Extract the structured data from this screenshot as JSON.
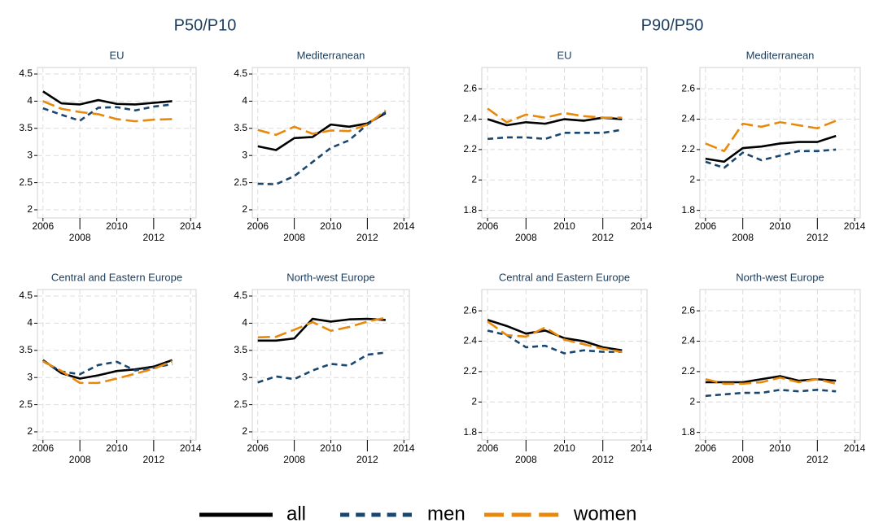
{
  "headings": [
    "P50/P10",
    "P90/P50"
  ],
  "chart_data": [
    {
      "type": "line",
      "title": "EU",
      "x": [
        2006,
        2007,
        2008,
        2009,
        2010,
        2011,
        2012,
        2013
      ],
      "xlim": [
        2005.7,
        2014.3
      ],
      "xticks": [
        2006,
        2008,
        2010,
        2012,
        2014
      ],
      "ylim": [
        1.85,
        4.62
      ],
      "yticks": [
        2,
        2.5,
        3,
        3.5,
        4,
        4.5
      ],
      "grid": true,
      "series": [
        {
          "name": "all",
          "color": "#000000",
          "dash": "none",
          "values": [
            4.18,
            3.96,
            3.94,
            4.02,
            3.95,
            3.94,
            3.97,
            4.0
          ]
        },
        {
          "name": "men",
          "color": "#1a476f",
          "dash": "7 5",
          "values": [
            3.87,
            3.75,
            3.64,
            3.88,
            3.89,
            3.83,
            3.9,
            3.94
          ]
        },
        {
          "name": "women",
          "color": "#e8890c",
          "dash": "15 6",
          "values": [
            4.0,
            3.86,
            3.8,
            3.76,
            3.67,
            3.63,
            3.66,
            3.67
          ]
        }
      ]
    },
    {
      "type": "line",
      "title": "Mediterranean",
      "x": [
        2006,
        2007,
        2008,
        2009,
        2010,
        2011,
        2012,
        2013
      ],
      "xlim": [
        2005.7,
        2014.3
      ],
      "xticks": [
        2006,
        2008,
        2010,
        2012,
        2014
      ],
      "ylim": [
        1.85,
        4.62
      ],
      "yticks": [
        2,
        2.5,
        3,
        3.5,
        4,
        4.5
      ],
      "grid": true,
      "series": [
        {
          "name": "all",
          "color": "#000000",
          "dash": "none",
          "values": [
            3.17,
            3.1,
            3.32,
            3.34,
            3.57,
            3.53,
            3.59,
            3.78
          ]
        },
        {
          "name": "men",
          "color": "#1a476f",
          "dash": "7 5",
          "values": [
            2.48,
            2.47,
            2.62,
            2.88,
            3.14,
            3.28,
            3.57,
            3.8
          ]
        },
        {
          "name": "women",
          "color": "#e8890c",
          "dash": "15 6",
          "values": [
            3.47,
            3.38,
            3.53,
            3.4,
            3.46,
            3.45,
            3.57,
            3.83
          ]
        }
      ]
    },
    {
      "type": "line",
      "title": "EU",
      "x": [
        2006,
        2007,
        2008,
        2009,
        2010,
        2011,
        2012,
        2013
      ],
      "xlim": [
        2005.7,
        2014.3
      ],
      "xticks": [
        2006,
        2008,
        2010,
        2012,
        2014
      ],
      "ylim": [
        1.75,
        2.74
      ],
      "yticks": [
        1.8,
        2,
        2.2,
        2.4,
        2.6
      ],
      "grid": true,
      "series": [
        {
          "name": "all",
          "color": "#000000",
          "dash": "none",
          "values": [
            2.4,
            2.36,
            2.38,
            2.37,
            2.4,
            2.39,
            2.41,
            2.4
          ]
        },
        {
          "name": "men",
          "color": "#1a476f",
          "dash": "7 5",
          "values": [
            2.27,
            2.28,
            2.28,
            2.27,
            2.31,
            2.31,
            2.31,
            2.33
          ]
        },
        {
          "name": "women",
          "color": "#e8890c",
          "dash": "15 6",
          "values": [
            2.47,
            2.38,
            2.43,
            2.41,
            2.44,
            2.42,
            2.41,
            2.41
          ]
        }
      ]
    },
    {
      "type": "line",
      "title": "Mediterranean",
      "x": [
        2006,
        2007,
        2008,
        2009,
        2010,
        2011,
        2012,
        2013
      ],
      "xlim": [
        2005.7,
        2014.3
      ],
      "xticks": [
        2006,
        2008,
        2010,
        2012,
        2014
      ],
      "ylim": [
        1.75,
        2.74
      ],
      "yticks": [
        1.8,
        2,
        2.2,
        2.4,
        2.6
      ],
      "grid": true,
      "series": [
        {
          "name": "all",
          "color": "#000000",
          "dash": "none",
          "values": [
            2.14,
            2.12,
            2.21,
            2.22,
            2.24,
            2.25,
            2.25,
            2.29
          ]
        },
        {
          "name": "men",
          "color": "#1a476f",
          "dash": "7 5",
          "values": [
            2.12,
            2.08,
            2.18,
            2.13,
            2.16,
            2.19,
            2.19,
            2.2
          ]
        },
        {
          "name": "women",
          "color": "#e8890c",
          "dash": "15 6",
          "values": [
            2.24,
            2.19,
            2.37,
            2.35,
            2.38,
            2.36,
            2.34,
            2.39
          ]
        }
      ]
    },
    {
      "type": "line",
      "title": "Central and Eastern Europe",
      "x": [
        2006,
        2007,
        2008,
        2009,
        2010,
        2011,
        2012,
        2013
      ],
      "xlim": [
        2005.7,
        2014.3
      ],
      "xticks": [
        2006,
        2008,
        2010,
        2012,
        2014
      ],
      "ylim": [
        1.85,
        4.62
      ],
      "yticks": [
        2,
        2.5,
        3,
        3.5,
        4,
        4.5
      ],
      "grid": true,
      "series": [
        {
          "name": "all",
          "color": "#000000",
          "dash": "none",
          "values": [
            3.32,
            3.08,
            2.98,
            3.04,
            3.12,
            3.15,
            3.2,
            3.32
          ]
        },
        {
          "name": "men",
          "color": "#1a476f",
          "dash": "7 5",
          "values": [
            3.3,
            3.11,
            3.06,
            3.23,
            3.29,
            3.13,
            3.18,
            3.25
          ]
        },
        {
          "name": "women",
          "color": "#e8890c",
          "dash": "15 6",
          "values": [
            3.3,
            3.12,
            2.9,
            2.9,
            2.98,
            3.07,
            3.16,
            3.3
          ]
        }
      ]
    },
    {
      "type": "line",
      "title": "North-west Europe",
      "x": [
        2006,
        2007,
        2008,
        2009,
        2010,
        2011,
        2012,
        2013
      ],
      "xlim": [
        2005.7,
        2014.3
      ],
      "xticks": [
        2006,
        2008,
        2010,
        2012,
        2014
      ],
      "ylim": [
        1.85,
        4.62
      ],
      "yticks": [
        2,
        2.5,
        3,
        3.5,
        4,
        4.5
      ],
      "grid": true,
      "series": [
        {
          "name": "all",
          "color": "#000000",
          "dash": "none",
          "values": [
            3.68,
            3.68,
            3.72,
            4.08,
            4.03,
            4.07,
            4.08,
            4.06
          ]
        },
        {
          "name": "men",
          "color": "#1a476f",
          "dash": "7 5",
          "values": [
            2.91,
            3.02,
            2.97,
            3.13,
            3.25,
            3.22,
            3.42,
            3.46
          ]
        },
        {
          "name": "women",
          "color": "#e8890c",
          "dash": "15 6",
          "values": [
            3.74,
            3.75,
            3.88,
            4.02,
            3.86,
            3.93,
            4.03,
            4.1
          ]
        }
      ]
    },
    {
      "type": "line",
      "title": "Central and Eastern Europe",
      "x": [
        2006,
        2007,
        2008,
        2009,
        2010,
        2011,
        2012,
        2013
      ],
      "xlim": [
        2005.7,
        2014.3
      ],
      "xticks": [
        2006,
        2008,
        2010,
        2012,
        2014
      ],
      "ylim": [
        1.75,
        2.74
      ],
      "yticks": [
        1.8,
        2,
        2.2,
        2.4,
        2.6
      ],
      "grid": true,
      "series": [
        {
          "name": "all",
          "color": "#000000",
          "dash": "none",
          "values": [
            2.54,
            2.5,
            2.45,
            2.47,
            2.42,
            2.4,
            2.36,
            2.34
          ]
        },
        {
          "name": "men",
          "color": "#1a476f",
          "dash": "7 5",
          "values": [
            2.47,
            2.44,
            2.36,
            2.37,
            2.32,
            2.34,
            2.33,
            2.33
          ]
        },
        {
          "name": "women",
          "color": "#e8890c",
          "dash": "15 6",
          "values": [
            2.53,
            2.44,
            2.43,
            2.49,
            2.41,
            2.38,
            2.35,
            2.33
          ]
        }
      ]
    },
    {
      "type": "line",
      "title": "North-west Europe",
      "x": [
        2006,
        2007,
        2008,
        2009,
        2010,
        2011,
        2012,
        2013
      ],
      "xlim": [
        2005.7,
        2014.3
      ],
      "xticks": [
        2006,
        2008,
        2010,
        2012,
        2014
      ],
      "ylim": [
        1.75,
        2.74
      ],
      "yticks": [
        1.8,
        2,
        2.2,
        2.4,
        2.6
      ],
      "grid": true,
      "series": [
        {
          "name": "all",
          "color": "#000000",
          "dash": "none",
          "values": [
            2.13,
            2.13,
            2.13,
            2.15,
            2.17,
            2.14,
            2.15,
            2.14
          ]
        },
        {
          "name": "men",
          "color": "#1a476f",
          "dash": "7 5",
          "values": [
            2.04,
            2.05,
            2.06,
            2.06,
            2.08,
            2.07,
            2.08,
            2.07
          ]
        },
        {
          "name": "women",
          "color": "#e8890c",
          "dash": "15 6",
          "values": [
            2.15,
            2.12,
            2.12,
            2.13,
            2.16,
            2.13,
            2.15,
            2.12
          ]
        }
      ]
    }
  ]
}
